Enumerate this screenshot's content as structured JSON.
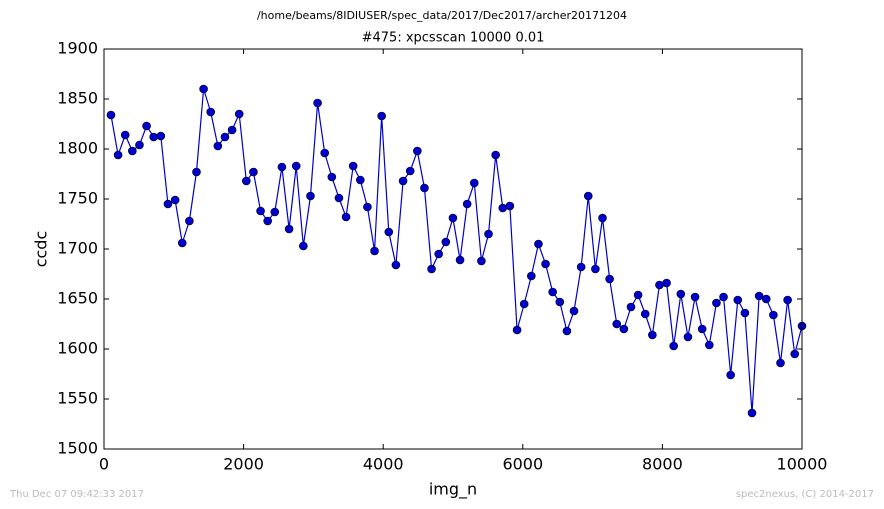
{
  "chart_data": {
    "type": "line",
    "suptitle": "/home/beams/8IDIUSER/spec_data/2017/Dec2017/archer20171204",
    "title": "#475: xpcsscan 10000 0.01",
    "xlabel": "img_n",
    "ylabel": "ccdc",
    "footer_left": "Thu Dec 07 09:42:33 2017",
    "footer_right": "spec2nexus, (C) 2014-2017",
    "x": [
      100,
      202,
      304,
      406,
      508,
      610,
      712,
      814,
      916,
      1019,
      1121,
      1223,
      1325,
      1427,
      1529,
      1631,
      1733,
      1835,
      1937,
      2039,
      2141,
      2243,
      2345,
      2447,
      2549,
      2652,
      2754,
      2856,
      2958,
      3060,
      3162,
      3264,
      3366,
      3468,
      3570,
      3672,
      3774,
      3876,
      3978,
      4080,
      4182,
      4285,
      4387,
      4489,
      4591,
      4693,
      4795,
      4897,
      4999,
      5101,
      5203,
      5305,
      5407,
      5509,
      5611,
      5713,
      5815,
      5918,
      6020,
      6122,
      6224,
      6326,
      6428,
      6530,
      6632,
      6734,
      6836,
      6938,
      7040,
      7142,
      7244,
      7346,
      7448,
      7550,
      7652,
      7754,
      7856,
      7958,
      8060,
      8162,
      8264,
      8366,
      8468,
      8570,
      8672,
      8774,
      8876,
      8978,
      9080,
      9182,
      9284,
      9386,
      9488,
      9590,
      9692,
      9794,
      9896,
      10000
    ],
    "series": [
      {
        "name": "ccdc",
        "color": "#0000cc",
        "values": [
          1834,
          1794,
          1814,
          1798,
          1804,
          1823,
          1812,
          1813,
          1745,
          1749,
          1706,
          1728,
          1777,
          1860,
          1837,
          1803,
          1812,
          1819,
          1835,
          1768,
          1777,
          1738,
          1728,
          1737,
          1782,
          1720,
          1783,
          1703,
          1753,
          1846,
          1796,
          1772,
          1751,
          1732,
          1783,
          1769,
          1742,
          1698,
          1833,
          1717,
          1684,
          1768,
          1778,
          1798,
          1761,
          1680,
          1695,
          1707,
          1731,
          1689,
          1745,
          1766,
          1688,
          1715,
          1794,
          1741,
          1743,
          1619,
          1645,
          1673,
          1705,
          1685,
          1657,
          1647,
          1618,
          1638,
          1682,
          1753,
          1680,
          1731,
          1670,
          1625,
          1620,
          1642,
          1654,
          1635,
          1614,
          1664,
          1666,
          1603,
          1655,
          1612,
          1652,
          1620,
          1604,
          1646,
          1652,
          1574,
          1649,
          1636,
          1536,
          1653,
          1650,
          1634,
          1586,
          1649,
          1595,
          1623
        ]
      }
    ],
    "xlim": [
      0,
      10000
    ],
    "xticks": [
      0,
      2000,
      4000,
      6000,
      8000,
      10000
    ],
    "ylim": [
      1500,
      1900
    ],
    "yticks": [
      1500,
      1550,
      1600,
      1650,
      1700,
      1750,
      1800,
      1850,
      1900
    ]
  }
}
